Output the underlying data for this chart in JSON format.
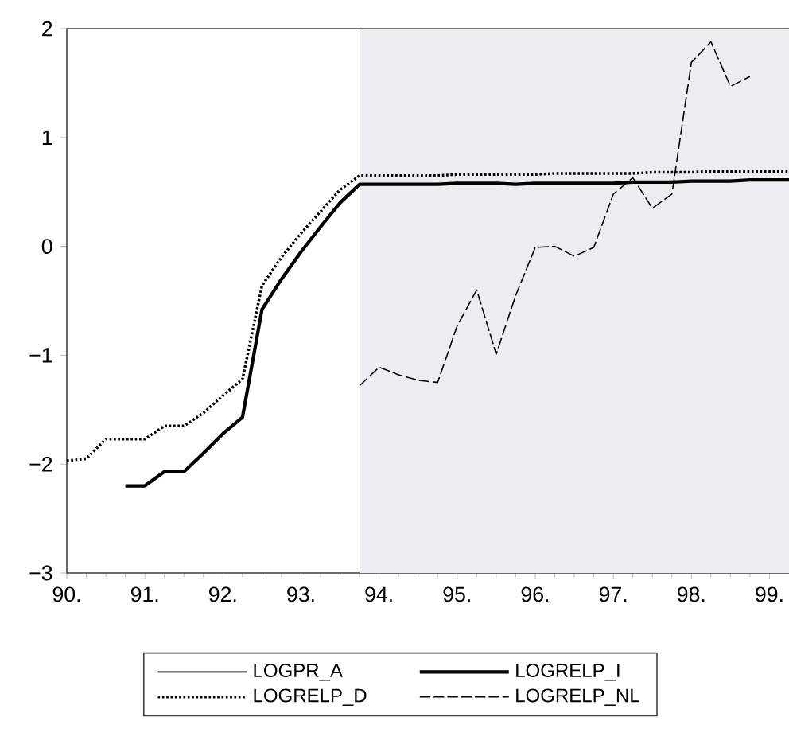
{
  "chart_data": {
    "type": "line",
    "x": [
      90.0,
      90.25,
      90.5,
      90.75,
      91.0,
      91.25,
      91.5,
      91.75,
      92.0,
      92.25,
      92.5,
      92.75,
      93.0,
      93.25,
      93.5,
      93.75,
      94.0,
      94.25,
      94.5,
      94.75,
      95.0,
      95.25,
      95.5,
      95.75,
      96.0,
      96.25,
      96.5,
      96.75,
      97.0,
      97.25,
      97.5,
      97.75,
      98.0,
      98.25,
      98.5,
      98.75,
      99.0,
      99.25
    ],
    "series": [
      {
        "name": "LOGPR_A",
        "color": "#000000",
        "line_style": "solid",
        "values": [
          null,
          null,
          null,
          null,
          null,
          null,
          null,
          null,
          null,
          null,
          null,
          null,
          null,
          null,
          null,
          null,
          null,
          null,
          null,
          null,
          null,
          null,
          null,
          null,
          null,
          null,
          null,
          null,
          null,
          null,
          null,
          null,
          null,
          null,
          null,
          null,
          null,
          null
        ]
      },
      {
        "name": "LOGRELP_I",
        "color": "#000000",
        "line_style": "solid",
        "values": [
          null,
          null,
          null,
          -2.2,
          -2.2,
          -2.07,
          -2.07,
          -1.9,
          -1.72,
          -1.57,
          -0.58,
          -0.3,
          -0.05,
          0.18,
          0.4,
          0.57,
          0.57,
          0.57,
          0.57,
          0.57,
          0.58,
          0.58,
          0.58,
          0.57,
          0.58,
          0.58,
          0.58,
          0.58,
          0.58,
          0.59,
          0.59,
          0.59,
          0.6,
          0.6,
          0.6,
          0.61,
          0.61,
          0.61
        ]
      },
      {
        "name": "LOGRELP_D",
        "color": "#000000",
        "line_style": "dotted",
        "values": [
          -1.97,
          -1.95,
          -1.77,
          -1.77,
          -1.77,
          -1.65,
          -1.65,
          -1.53,
          -1.37,
          -1.22,
          -0.36,
          -0.1,
          0.12,
          0.32,
          0.52,
          0.65,
          0.65,
          0.65,
          0.65,
          0.65,
          0.66,
          0.66,
          0.66,
          0.66,
          0.66,
          0.67,
          0.67,
          0.67,
          0.67,
          0.67,
          0.68,
          0.68,
          0.68,
          0.69,
          0.69,
          0.69,
          0.69,
          0.69
        ]
      },
      {
        "name": "LOGRELP_NL",
        "color": "#000000",
        "line_style": "dashed",
        "values": [
          null,
          null,
          null,
          null,
          null,
          null,
          null,
          null,
          null,
          null,
          null,
          null,
          null,
          null,
          null,
          -1.28,
          -1.11,
          -1.18,
          -1.23,
          -1.25,
          -0.73,
          -0.4,
          -0.99,
          -0.45,
          -0.01,
          0.0,
          -0.09,
          -0.01,
          0.48,
          0.63,
          0.35,
          0.48,
          1.69,
          1.88,
          1.47,
          1.56,
          null,
          null
        ]
      }
    ],
    "xlim": [
      90,
      99.25
    ],
    "xticks": [
      {
        "value": 90,
        "label": "90."
      },
      {
        "value": 91,
        "label": "91."
      },
      {
        "value": 92,
        "label": "92."
      },
      {
        "value": 93,
        "label": "93."
      },
      {
        "value": 94,
        "label": "94."
      },
      {
        "value": 95,
        "label": "95."
      },
      {
        "value": 96,
        "label": "96."
      },
      {
        "value": 97,
        "label": "97."
      },
      {
        "value": 98,
        "label": "98."
      },
      {
        "value": 99,
        "label": "99."
      }
    ],
    "ylim": [
      -3,
      2
    ],
    "yticks": [
      {
        "value": -3,
        "label": "−3"
      },
      {
        "value": -2,
        "label": "−2"
      },
      {
        "value": -1,
        "label": "−1"
      },
      {
        "value": 0,
        "label": "0"
      },
      {
        "value": 1,
        "label": "1"
      },
      {
        "value": 2,
        "label": "2"
      }
    ],
    "bands": [
      {
        "axis": "x",
        "from": 93.75,
        "to": 99.25,
        "color": "#ecedf0"
      }
    ],
    "grid": false,
    "legend": "bottom",
    "marker": "none"
  }
}
